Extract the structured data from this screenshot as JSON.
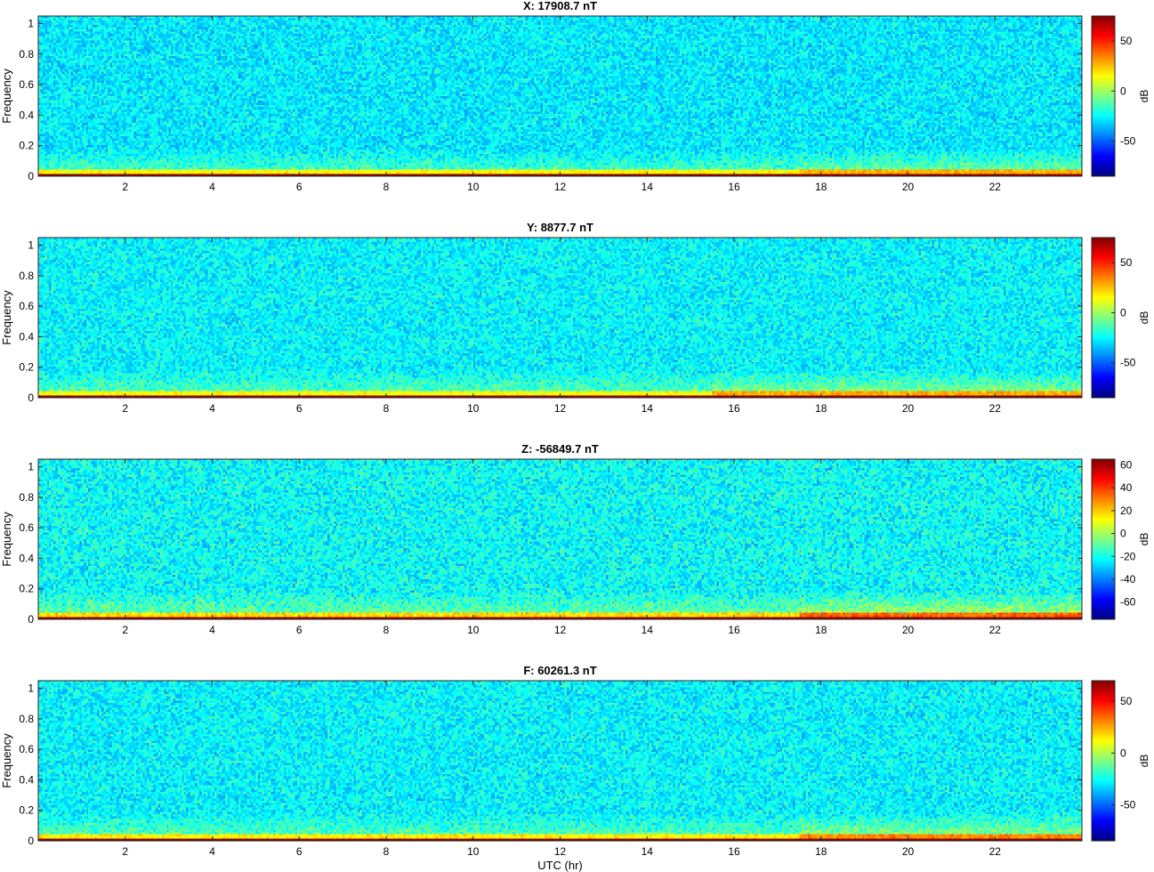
{
  "chart_data": [
    {
      "type": "heatmap",
      "title": "X: 17908.7 nT",
      "xlabel": "",
      "ylabel": "Frequency",
      "xlim": [
        0,
        24
      ],
      "ylim": [
        0,
        1.05
      ],
      "xticks": [
        2,
        4,
        6,
        8,
        10,
        12,
        14,
        16,
        18,
        20,
        22
      ],
      "yticks": [
        0,
        0.2,
        0.4,
        0.6,
        0.8,
        1
      ],
      "colorbar": {
        "label": "dB",
        "range": [
          -85,
          75
        ],
        "ticks": [
          -50,
          0,
          50
        ]
      },
      "colormap": "jet",
      "features": {
        "baseline_db": -28,
        "dc_band_db": 72,
        "low_freq_band_db": 15,
        "late_day_enhancement_start_hr": 17.5,
        "late_day_enhancement_db": 12
      }
    },
    {
      "type": "heatmap",
      "title": "Y: 8877.7 nT",
      "xlabel": "",
      "ylabel": "Frequency",
      "xlim": [
        0,
        24
      ],
      "ylim": [
        0,
        1.05
      ],
      "xticks": [
        2,
        4,
        6,
        8,
        10,
        12,
        14,
        16,
        18,
        20,
        22
      ],
      "yticks": [
        0,
        0.2,
        0.4,
        0.6,
        0.8,
        1
      ],
      "colorbar": {
        "label": "dB",
        "range": [
          -85,
          75
        ],
        "ticks": [
          -50,
          0,
          50
        ]
      },
      "colormap": "jet",
      "features": {
        "baseline_db": -26,
        "dc_band_db": 72,
        "low_freq_band_db": 14,
        "late_day_enhancement_start_hr": 15.5,
        "late_day_enhancement_db": 14
      }
    },
    {
      "type": "heatmap",
      "title": "Z: -56849.7 nT",
      "xlabel": "",
      "ylabel": "Frequency",
      "xlim": [
        0,
        24
      ],
      "ylim": [
        0,
        1.05
      ],
      "xticks": [
        2,
        4,
        6,
        8,
        10,
        12,
        14,
        16,
        18,
        20,
        22
      ],
      "yticks": [
        0,
        0.2,
        0.4,
        0.6,
        0.8,
        1
      ],
      "colorbar": {
        "label": "dB",
        "range": [
          -75,
          65
        ],
        "ticks": [
          -60,
          -40,
          -20,
          0,
          20,
          40,
          60
        ]
      },
      "colormap": "jet",
      "features": {
        "baseline_db": -22,
        "dc_band_db": 62,
        "low_freq_band_db": 18,
        "late_day_enhancement_start_hr": 17.5,
        "late_day_enhancement_db": 16
      }
    },
    {
      "type": "heatmap",
      "title": "F: 60261.3 nT",
      "xlabel": "UTC (hr)",
      "ylabel": "Frequency",
      "xlim": [
        0,
        24
      ],
      "ylim": [
        0,
        1.05
      ],
      "xticks": [
        2,
        4,
        6,
        8,
        10,
        12,
        14,
        16,
        18,
        20,
        22
      ],
      "yticks": [
        0,
        0.2,
        0.4,
        0.6,
        0.8,
        1
      ],
      "colorbar": {
        "label": "dB",
        "range": [
          -85,
          70
        ],
        "ticks": [
          -50,
          0,
          50
        ]
      },
      "colormap": "jet",
      "features": {
        "baseline_db": -28,
        "dc_band_db": 68,
        "low_freq_band_db": 14,
        "late_day_enhancement_start_hr": 17.5,
        "late_day_enhancement_db": 16
      }
    }
  ]
}
